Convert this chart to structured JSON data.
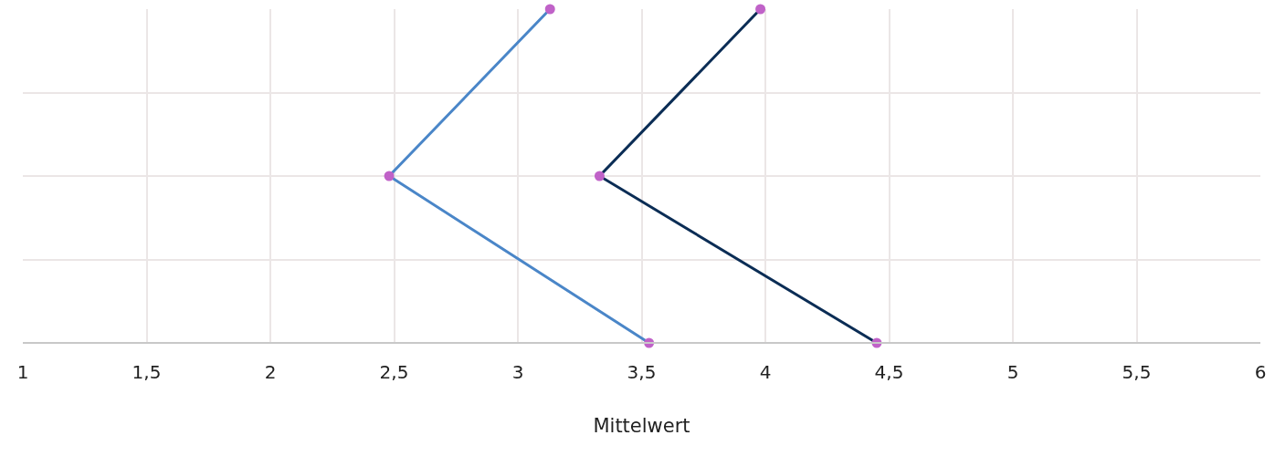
{
  "chart_data": {
    "type": "line",
    "orientation": "horizontal",
    "categories": [
      null,
      null,
      null
    ],
    "series": [
      {
        "color": "#4a86c8",
        "values": [
          3.13,
          2.48,
          3.53
        ]
      },
      {
        "color": "#0b2d55",
        "values": [
          3.98,
          3.33,
          4.45
        ]
      }
    ],
    "xlabel": "Mittelwert",
    "xlim": [
      1,
      6
    ],
    "xticks": [
      1,
      {
        "value": 1.5,
        "label": "1,5"
      },
      2,
      {
        "value": 2.5,
        "label": "2,5"
      },
      3,
      {
        "value": 3.5,
        "label": "3,5"
      },
      4,
      {
        "value": 4.5,
        "label": "4,5"
      },
      5,
      {
        "value": 5.5,
        "label": "5,5"
      },
      6
    ],
    "grid": true,
    "marker": "circle",
    "tick_labels": "x"
  }
}
